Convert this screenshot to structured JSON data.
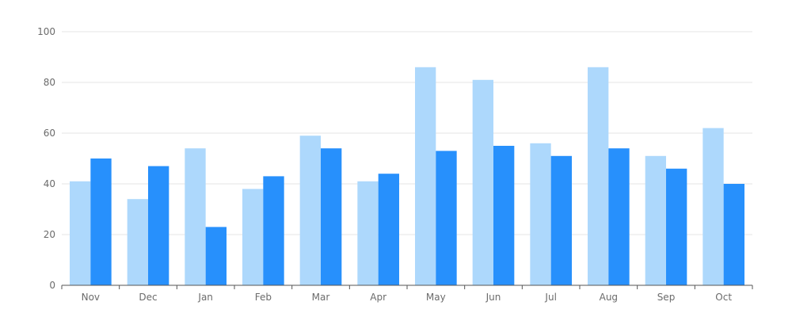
{
  "chart_data": {
    "type": "bar",
    "categories": [
      "Nov",
      "Dec",
      "Jan",
      "Feb",
      "Mar",
      "Apr",
      "May",
      "Jun",
      "Jul",
      "Aug",
      "Sep",
      "Oct"
    ],
    "series": [
      {
        "values": [
          41,
          34,
          54,
          38,
          59,
          41,
          86,
          81,
          56,
          86,
          51,
          62
        ]
      },
      {
        "values": [
          50,
          47,
          23,
          43,
          54,
          44,
          53,
          55,
          51,
          54,
          46,
          40
        ]
      }
    ],
    "ylim": [
      0,
      100
    ],
    "yticks": [
      0,
      20,
      40,
      60,
      80,
      100
    ],
    "grid": true,
    "colors": [
      "#add8fc",
      "#2790fc"
    ],
    "gridColor": "#e6e6e6",
    "axisColor": "#555555"
  }
}
